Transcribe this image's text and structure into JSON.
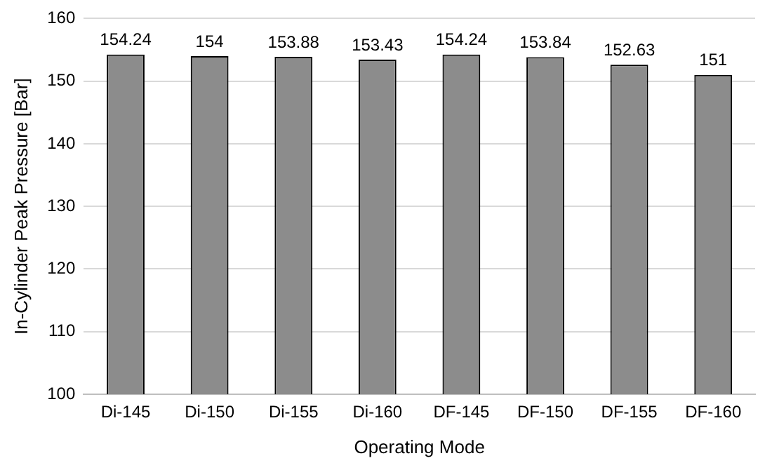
{
  "chart_data": {
    "type": "bar",
    "xlabel": "Operating Mode",
    "ylabel": "In-Cylinder Peak Pressure [Bar]",
    "categories": [
      "Di-145",
      "Di-150",
      "Di-155",
      "Di-160",
      "DF-145",
      "DF-150",
      "DF-155",
      "DF-160"
    ],
    "values": [
      154.24,
      154,
      153.88,
      153.43,
      154.24,
      153.84,
      152.63,
      151
    ],
    "color": "#8c8c8c",
    "ylim": [
      100,
      160
    ],
    "yticks": [
      100,
      110,
      120,
      130,
      140,
      150,
      160
    ],
    "grid": "y",
    "data_labels": true,
    "legend": false
  }
}
